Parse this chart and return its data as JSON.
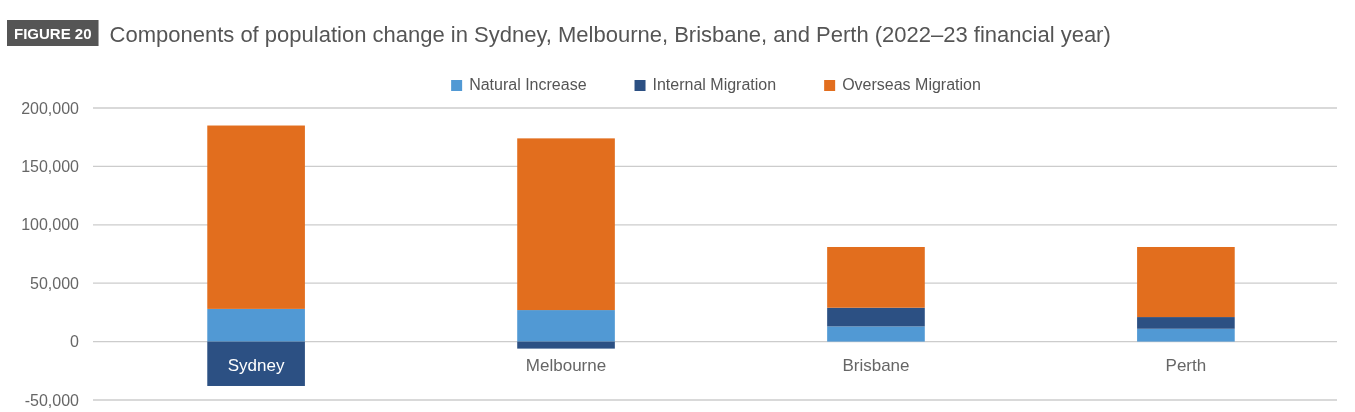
{
  "chart_data": {
    "type": "bar",
    "title": "Components of population change in Sydney, Melbourne, Brisbane, and Perth (2022–23 financial year)",
    "annotations": [
      "FIGURE 20"
    ],
    "categories": [
      "Sydney",
      "Melbourne",
      "Brisbane",
      "Perth"
    ],
    "stacked": true,
    "series": [
      {
        "name": "Natural Increase",
        "color": "#5199d4",
        "values": [
          28000,
          27000,
          13000,
          11000
        ]
      },
      {
        "name": "Internal Migration",
        "color": "#2c5083",
        "values": [
          -38000,
          -6000,
          16000,
          10000
        ]
      },
      {
        "name": "Overseas Migration",
        "color": "#e26e1e",
        "values": [
          157000,
          147000,
          52000,
          60000
        ]
      }
    ],
    "ylim": [
      -50000,
      200000
    ],
    "yticks": [
      {
        "value": -50000,
        "label": "-50,000"
      },
      {
        "value": 0,
        "label": "0"
      },
      {
        "value": 50000,
        "label": "50,000"
      },
      {
        "value": 100000,
        "label": "100,000"
      },
      {
        "value": 150000,
        "label": "150,000"
      },
      {
        "value": 200000,
        "label": "200,000"
      }
    ],
    "grid": "y",
    "legend": "top"
  }
}
